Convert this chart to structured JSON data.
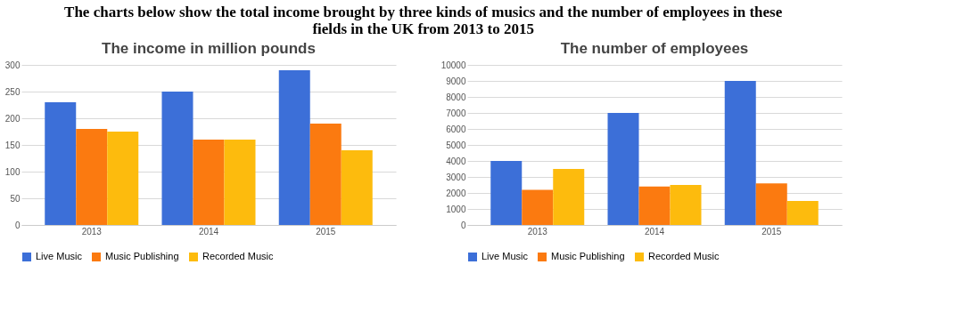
{
  "chart_data": [
    {
      "type": "bar",
      "title": "The income in million pounds",
      "annotations": [
        "The charts below show the total income brought by three kinds of musics and the number of employees in these fields in the UK from 2013 to 2015"
      ],
      "categories": [
        "2013",
        "2014",
        "2015"
      ],
      "series": [
        {
          "name": "Live Music",
          "color": "#3c6fd8",
          "values": [
            230,
            250,
            290
          ]
        },
        {
          "name": "Music Publishing",
          "color": "#fb7a10",
          "values": [
            180,
            160,
            190
          ]
        },
        {
          "name": "Recorded Music",
          "color": "#fdbb0d",
          "values": [
            175,
            160,
            140
          ]
        }
      ],
      "ylim": [
        0,
        300
      ],
      "yticks": [
        0,
        50,
        100,
        150,
        200,
        250,
        300
      ],
      "grid": "y",
      "legend": "bottom"
    },
    {
      "type": "bar",
      "title": "The number of employees",
      "categories": [
        "2013",
        "2014",
        "2015"
      ],
      "series": [
        {
          "name": "Live Music",
          "color": "#3c6fd8",
          "values": [
            4000,
            7000,
            9000
          ]
        },
        {
          "name": "Music Publishing",
          "color": "#fb7a10",
          "values": [
            2200,
            2400,
            2600
          ]
        },
        {
          "name": "Recorded Music",
          "color": "#fdbb0d",
          "values": [
            3500,
            2500,
            1500
          ]
        }
      ],
      "ylim": [
        0,
        10000
      ],
      "yticks": [
        0,
        1000,
        2000,
        3000,
        4000,
        5000,
        6000,
        7000,
        8000,
        9000,
        10000
      ],
      "grid": "y",
      "legend": "bottom"
    }
  ]
}
